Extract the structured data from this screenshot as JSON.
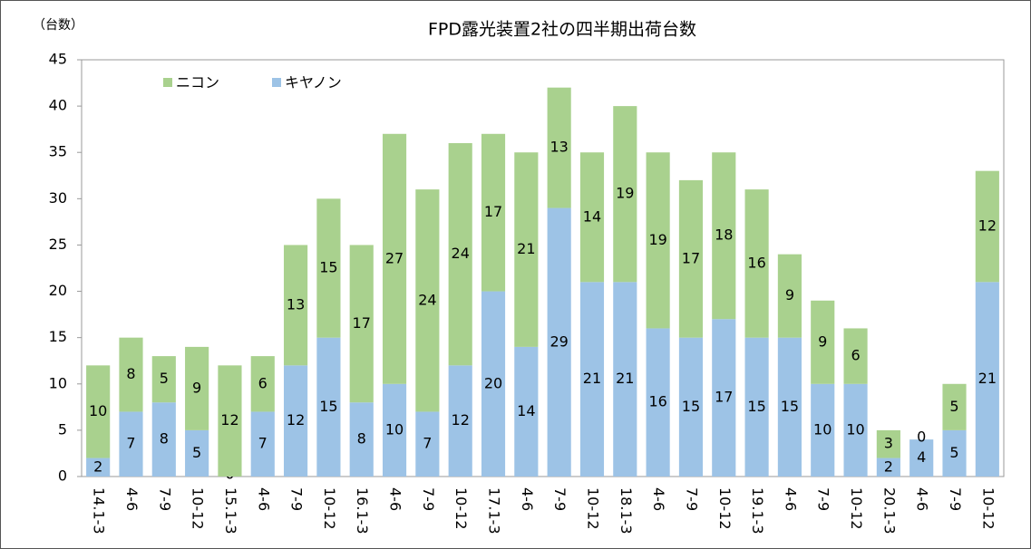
{
  "chart_data": {
    "type": "stacked_bar",
    "title": "FPD露光装置2社の四半期出荷台数",
    "y_label": "（台数）",
    "categories": [
      "14.1-3",
      "4-6",
      "7-9",
      "10-12",
      "15.1-3",
      "4-6",
      "7-9",
      "10-12",
      "16.1-3",
      "4-6",
      "7-9",
      "10-12",
      "17.1-3",
      "4-6",
      "7-9",
      "10-12",
      "18.1-3",
      "4-6",
      "7-9",
      "10-12",
      "19.1-3",
      "4-6",
      "7-9",
      "10-12",
      "20.1-3",
      "4-6",
      "7-9",
      "10-12"
    ],
    "series": [
      {
        "name": "ニコン",
        "color": "#a9d18e",
        "values": [
          10,
          8,
          5,
          9,
          12,
          6,
          13,
          15,
          17,
          27,
          24,
          24,
          17,
          21,
          13,
          14,
          19,
          19,
          17,
          18,
          16,
          9,
          9,
          6,
          3,
          0,
          5,
          12
        ]
      },
      {
        "name": "キヤノン",
        "color": "#9dc3e6",
        "values": [
          2,
          7,
          8,
          5,
          0,
          7,
          12,
          15,
          8,
          10,
          7,
          12,
          20,
          14,
          29,
          21,
          21,
          16,
          15,
          17,
          15,
          15,
          10,
          10,
          2,
          4,
          5,
          21
        ]
      }
    ],
    "ylim": [
      0,
      45
    ],
    "yticks": [
      0,
      5,
      10,
      15,
      20,
      25,
      30,
      35,
      40,
      45
    ],
    "grid": false,
    "legend": "top-left"
  }
}
